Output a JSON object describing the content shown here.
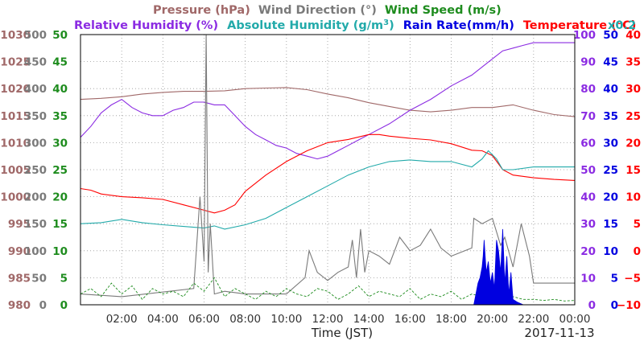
{
  "chart_data": {
    "type": "line",
    "date_label": "2017-11-13",
    "xlabel": "Time (JST)",
    "x_ticks": [
      "02:00",
      "04:00",
      "06:00",
      "08:00",
      "10:00",
      "12:00",
      "14:00",
      "16:00",
      "18:00",
      "20:00",
      "22:00",
      "00:00"
    ],
    "x_range_hours": [
      0,
      24
    ],
    "grid": true,
    "legend": {
      "row1": [
        {
          "text": "Pressure (hPa)",
          "color": "#a06868"
        },
        {
          "text": "Wind Direction (°)",
          "color": "#7a7a7a"
        },
        {
          "text": "Wind Speed (m/s)",
          "color": "#1e8c1e"
        }
      ],
      "row2": [
        {
          "text": "Relative Humidity (%)",
          "color": "#8b2be2"
        },
        {
          "text": "Absolute Humidity (g/m",
          "color": "#22aaaa",
          "superscript": "3",
          "suffix": ")"
        },
        {
          "text": "Rain Rate(mm/h)",
          "color": "#0000e0"
        },
        {
          "text": "Temperature (°C)",
          "color": "#ff0000"
        },
        {
          "text": "x0.2",
          "color": "#22aaaa"
        }
      ]
    },
    "axes": {
      "pressure": {
        "color": "#a06868",
        "ticks": [
          "1030",
          "1025",
          "1020",
          "1015",
          "1010",
          "1005",
          "1000",
          "995",
          "990",
          "985",
          "980"
        ],
        "range": [
          980,
          1030
        ]
      },
      "wind_direction": {
        "color": "#7a7a7a",
        "ticks": [
          "500",
          "450",
          "400",
          "350",
          "300",
          "250",
          "200",
          "150",
          "100",
          "50",
          "0"
        ],
        "range": [
          0,
          500
        ]
      },
      "wind_speed": {
        "color": "#1e8c1e",
        "ticks": [
          "50",
          "45",
          "40",
          "35",
          "30",
          "25",
          "20",
          "15",
          "10",
          "5",
          "0"
        ],
        "range": [
          0,
          50
        ]
      },
      "relative_humidity": {
        "color": "#8b2be2",
        "ticks": [
          "100",
          "90",
          "80",
          "70",
          "60",
          "50",
          "40",
          "30",
          "20",
          "10",
          "0"
        ],
        "range": [
          0,
          100
        ]
      },
      "rain_rate": {
        "color": "#0000e0",
        "ticks": [
          "50",
          "45",
          "40",
          "35",
          "30",
          "25",
          "20",
          "15",
          "10",
          "5",
          "0"
        ],
        "range": [
          0,
          50
        ]
      },
      "temperature": {
        "color": "#ff0000",
        "ticks": [
          "40",
          "35",
          "30",
          "25",
          "20",
          "15",
          "10",
          "5",
          "0",
          "−5",
          "−10"
        ],
        "range": [
          -10,
          40
        ]
      }
    },
    "series": [
      {
        "name": "Pressure (hPa)",
        "color": "#a06868",
        "axis": "pressure",
        "x": [
          0,
          1,
          2,
          3,
          4,
          5,
          6,
          7,
          8,
          9,
          10,
          11,
          12,
          13,
          14,
          15,
          16,
          17,
          18,
          19,
          20,
          21,
          22,
          23,
          24
        ],
        "y": [
          1018.0,
          1018.2,
          1018.5,
          1019.0,
          1019.3,
          1019.5,
          1019.5,
          1019.6,
          1020.0,
          1020.1,
          1020.2,
          1019.8,
          1019.0,
          1018.3,
          1017.4,
          1016.7,
          1016.0,
          1015.7,
          1016.0,
          1016.5,
          1016.5,
          1017.0,
          1016.0,
          1015.2,
          1014.8
        ]
      },
      {
        "name": "Relative Humidity (%)",
        "color": "#8b2be2",
        "axis": "relative_humidity",
        "x": [
          0,
          0.5,
          1,
          1.5,
          2,
          2.5,
          3,
          3.5,
          4,
          4.5,
          5,
          5.5,
          6,
          6.5,
          7,
          7.5,
          8,
          8.5,
          9,
          9.5,
          10,
          10.5,
          11,
          11.5,
          12,
          12.5,
          13,
          13.5,
          14,
          15,
          16,
          17,
          18,
          19,
          19.5,
          20,
          20.5,
          21,
          21.5,
          22,
          23,
          24
        ],
        "y": [
          62,
          66,
          71,
          74,
          76,
          73,
          71,
          70,
          70,
          72,
          73,
          75,
          75,
          74,
          74,
          70,
          66,
          63,
          61,
          59,
          58,
          56,
          55,
          54,
          55,
          57,
          59,
          61,
          63,
          67,
          72,
          76,
          81,
          85,
          88,
          91,
          94,
          95,
          96,
          97,
          97,
          97
        ]
      },
      {
        "name": "Temperature (°C)",
        "color": "#ff0000",
        "axis": "temperature",
        "x": [
          0,
          0.5,
          1,
          2,
          3,
          4,
          5,
          6,
          6.5,
          7,
          7.5,
          8,
          9,
          10,
          11,
          12,
          13,
          14,
          14.5,
          15,
          16,
          17,
          18,
          19,
          19.5,
          20,
          20.5,
          21,
          22,
          23,
          24
        ],
        "y": [
          11.5,
          11.2,
          10.5,
          10.0,
          9.8,
          9.5,
          8.5,
          7.5,
          7.0,
          7.5,
          8.5,
          11.0,
          14.0,
          16.5,
          18.5,
          20.0,
          20.6,
          21.5,
          21.5,
          21.2,
          20.8,
          20.5,
          19.8,
          18.6,
          18.5,
          17.6,
          15.0,
          14.0,
          13.5,
          13.2,
          13.0
        ]
      },
      {
        "name": "Absolute Humidity (g/m3)",
        "color": "#22aaaa",
        "axis": "wind_direction",
        "x": [
          0,
          1,
          2,
          3,
          4,
          5,
          6,
          6.5,
          7,
          8,
          9,
          10,
          11,
          12,
          13,
          14,
          15,
          16,
          17,
          18,
          19,
          19.5,
          19.8,
          20.2,
          20.5,
          21,
          22,
          23,
          24
        ],
        "y": [
          150,
          152,
          158,
          152,
          148,
          145,
          142,
          146,
          140,
          148,
          160,
          180,
          200,
          220,
          240,
          255,
          265,
          268,
          265,
          265,
          255,
          270,
          285,
          270,
          250,
          250,
          255,
          255,
          255
        ]
      },
      {
        "name": "Wind Direction (°)",
        "color": "#7a7a7a",
        "axis": "wind_direction",
        "x": [
          0,
          2,
          5.5,
          5.8,
          6.0,
          6.1,
          6.2,
          6.3,
          6.5,
          7.0,
          8.0,
          10.0,
          10.9,
          11.1,
          11.5,
          12.0,
          12.5,
          13.0,
          13.2,
          13.4,
          13.6,
          13.8,
          14.0,
          14.5,
          15,
          15.5,
          16,
          16.5,
          17,
          17.5,
          18,
          19,
          19.1,
          19.5,
          20,
          20.4,
          20.6,
          21,
          21.4,
          21.8,
          22,
          24
        ],
        "y": [
          20,
          15,
          30,
          200,
          80,
          500,
          60,
          150,
          20,
          25,
          20,
          20,
          50,
          100,
          60,
          45,
          60,
          70,
          120,
          50,
          140,
          60,
          100,
          90,
          75,
          125,
          100,
          110,
          140,
          105,
          90,
          105,
          160,
          150,
          160,
          110,
          125,
          70,
          150,
          90,
          40,
          40
        ]
      },
      {
        "name": "Wind Speed (m/s)",
        "color": "#1e8c1e",
        "axis": "wind_speed",
        "x": [
          0,
          0.5,
          1,
          1.5,
          2,
          2.5,
          3,
          3.5,
          4,
          4.5,
          5,
          5.5,
          6,
          6.5,
          7,
          7.5,
          8,
          8.5,
          9,
          9.5,
          10,
          10.5,
          11,
          11.5,
          12,
          12.5,
          13,
          13.5,
          14,
          14.5,
          15,
          15.5,
          16,
          16.5,
          17,
          17.5,
          18,
          18.5,
          19,
          19.5,
          20,
          20.5,
          21,
          21.5,
          22,
          22.5,
          23,
          23.5,
          24
        ],
        "y": [
          2,
          3,
          1.5,
          4,
          2,
          3.5,
          1,
          3,
          2,
          2.5,
          1.5,
          4,
          2.5,
          5,
          1.5,
          3,
          2,
          1,
          2.5,
          1.5,
          3,
          2,
          1.5,
          3,
          2.5,
          1,
          2,
          3.5,
          1.5,
          2.5,
          2,
          1.5,
          3,
          1,
          2,
          1.5,
          2.5,
          1,
          2,
          1.5,
          1,
          2,
          1.5,
          1,
          1,
          0.8,
          1,
          0.7,
          0.8
        ]
      },
      {
        "name": "Rain Rate(mm/h)",
        "color": "#0000e0",
        "axis": "rain_rate",
        "x": [
          19.1,
          19.2,
          19.3,
          19.4,
          19.5,
          19.55,
          19.6,
          19.7,
          19.8,
          19.9,
          20.0,
          20.1,
          20.2,
          20.3,
          20.4,
          20.5,
          20.6,
          20.7,
          20.8,
          20.9,
          21.0,
          21.2,
          21.5
        ],
        "y": [
          0,
          2,
          4,
          5,
          7,
          9,
          12,
          6,
          8,
          4,
          6,
          3,
          12,
          10,
          6,
          14,
          4,
          9,
          2,
          6,
          1,
          0.5,
          0
        ]
      }
    ]
  }
}
